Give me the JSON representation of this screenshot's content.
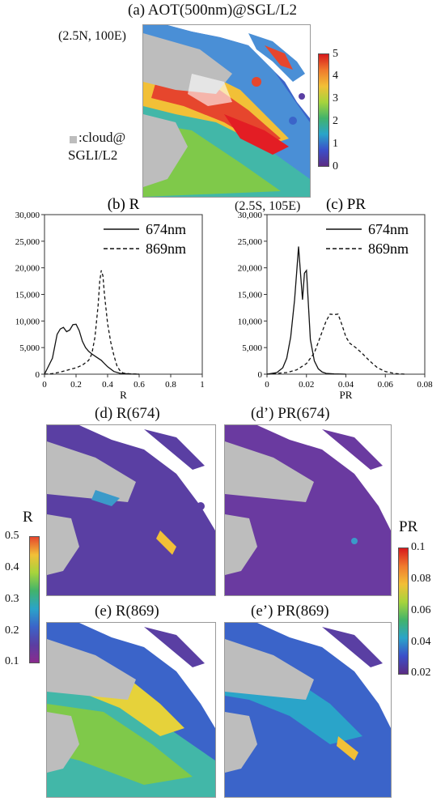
{
  "panel_a": {
    "title": "(a)  AOT(500nm)@SGL/L2",
    "corner_nw": "(2.5N, 100E)",
    "corner_se": "(2.5S, 105E)",
    "cloud_legend_line1": ":cloud@",
    "cloud_legend_line2": "SGLI/L2",
    "colorbar": {
      "ticks": [
        "5",
        "4",
        "3",
        "2",
        "1",
        "0"
      ]
    }
  },
  "panel_d": {
    "title": "(d) R(674)"
  },
  "panel_d2": {
    "title": "(d’) PR(674)"
  },
  "panel_e": {
    "title": "(e) R(869)"
  },
  "panel_e2": {
    "title": "(e’) PR(869)"
  },
  "colorbar_R": {
    "label": "R",
    "ticks": [
      "0.5",
      "0.4",
      "0.3",
      "0.2",
      "0.1"
    ]
  },
  "colorbar_PR": {
    "label": "PR",
    "ticks": [
      "0.1",
      "0.08",
      "0.06",
      "0.04",
      "0.02"
    ]
  },
  "colors": {
    "cloud": "#bdbdbd",
    "land_edge": "#555555"
  },
  "chart_data": [
    {
      "type": "line",
      "title": "(b) R",
      "xlabel": "R",
      "ylabel": "",
      "xlim": [
        0,
        1
      ],
      "ylim": [
        0,
        30000
      ],
      "xticks": [
        "0",
        "0.2",
        "0.4",
        "0.6",
        "0.8",
        "1"
      ],
      "yticks": [
        "0",
        "5,000",
        "10,000",
        "15,000",
        "20,000",
        "25,000",
        "30,000"
      ],
      "legend_position": "top-right",
      "series": [
        {
          "name": "674nm",
          "style": "solid",
          "x": [
            0.0,
            0.05,
            0.08,
            0.1,
            0.12,
            0.14,
            0.16,
            0.18,
            0.2,
            0.22,
            0.24,
            0.26,
            0.28,
            0.3,
            0.32,
            0.34,
            0.36,
            0.38,
            0.4,
            0.44,
            0.48,
            0.55,
            0.6
          ],
          "y": [
            0,
            3000,
            7500,
            8500,
            8800,
            8000,
            8300,
            9300,
            9400,
            8200,
            6200,
            5000,
            4300,
            3800,
            3400,
            3000,
            2600,
            2000,
            1400,
            500,
            150,
            30,
            0
          ]
        },
        {
          "name": "869nm",
          "style": "dashed",
          "x": [
            0.0,
            0.05,
            0.1,
            0.15,
            0.2,
            0.24,
            0.28,
            0.3,
            0.32,
            0.34,
            0.35,
            0.36,
            0.37,
            0.38,
            0.4,
            0.42,
            0.44,
            0.46,
            0.48,
            0.5,
            0.55,
            0.6
          ],
          "y": [
            0,
            100,
            400,
            800,
            1200,
            1700,
            2600,
            3800,
            7000,
            13000,
            17500,
            19500,
            18500,
            15000,
            9500,
            6000,
            3500,
            1500,
            600,
            200,
            50,
            0
          ]
        }
      ]
    },
    {
      "type": "line",
      "title": "(c) PR",
      "xlabel": "PR",
      "ylabel": "",
      "xlim": [
        0,
        0.08
      ],
      "ylim": [
        0,
        30000
      ],
      "xticks": [
        "0",
        "0.02",
        "0.04",
        "0.06",
        "0.08"
      ],
      "yticks": [
        "0",
        "5,000",
        "10,000",
        "15,000",
        "20,000",
        "25,000",
        "30,000"
      ],
      "legend_position": "top-right",
      "series": [
        {
          "name": "674nm",
          "style": "solid",
          "x": [
            0.0,
            0.005,
            0.008,
            0.01,
            0.012,
            0.014,
            0.015,
            0.016,
            0.017,
            0.018,
            0.019,
            0.02,
            0.021,
            0.022,
            0.024,
            0.026,
            0.028,
            0.03,
            0.034,
            0.04
          ],
          "y": [
            0,
            300,
            1200,
            3000,
            7000,
            14000,
            19000,
            24000,
            19000,
            14000,
            19000,
            19500,
            13000,
            6500,
            2500,
            1000,
            400,
            150,
            50,
            0
          ]
        },
        {
          "name": "869nm",
          "style": "dashed",
          "x": [
            0.0,
            0.01,
            0.015,
            0.02,
            0.024,
            0.027,
            0.03,
            0.032,
            0.034,
            0.036,
            0.038,
            0.04,
            0.042,
            0.045,
            0.048,
            0.052,
            0.056,
            0.06,
            0.065,
            0.07
          ],
          "y": [
            0,
            300,
            800,
            2000,
            4000,
            7000,
            10000,
            11300,
            11200,
            11300,
            9300,
            7000,
            5800,
            5000,
            4000,
            2500,
            1200,
            500,
            100,
            0
          ]
        }
      ]
    }
  ]
}
